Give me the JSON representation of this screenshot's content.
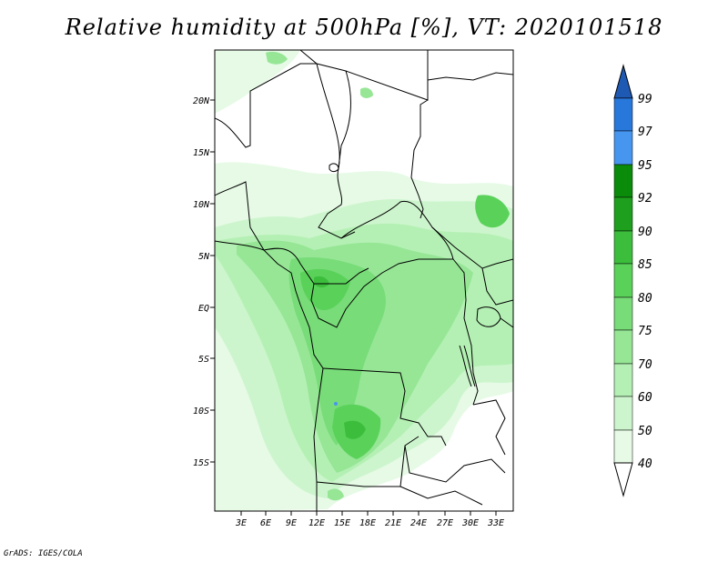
{
  "title": "Relative humidity at 500hPa [%], VT: 2020101518",
  "credit": "GrADS: IGES/COLA",
  "map": {
    "lon_labels": [
      "3E",
      "6E",
      "9E",
      "12E",
      "15E",
      "18E",
      "21E",
      "24E",
      "27E",
      "30E",
      "33E"
    ],
    "lat_labels": [
      "20N",
      "15N",
      "10N",
      "5N",
      "EQ",
      "5S",
      "10S",
      "15S"
    ]
  },
  "colorbar": {
    "levels": [
      "40",
      "50",
      "60",
      "70",
      "75",
      "80",
      "85",
      "90",
      "92",
      "95",
      "97",
      "99"
    ],
    "colors": [
      "#ffffff",
      "#e6fae6",
      "#cdf5cd",
      "#b4f0b4",
      "#96e696",
      "#78dc78",
      "#5ad25a",
      "#3cbe3c",
      "#1ea01e",
      "#0a8c0a",
      "#4696f0",
      "#2878dc",
      "#1e5ab4"
    ]
  }
}
